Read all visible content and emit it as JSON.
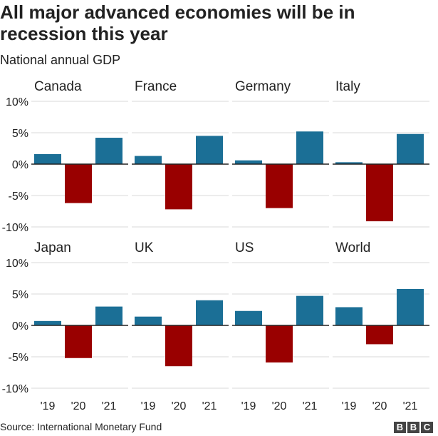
{
  "header": {
    "title": "All major advanced economies will be in recession this year",
    "subtitle": "National annual GDP"
  },
  "footer": {
    "source": "Source: International Monetary Fund",
    "logo": [
      "B",
      "B",
      "C"
    ]
  },
  "colors": {
    "positive": "#1b6f96",
    "negative": "#990000",
    "grid": "#d9d9d9",
    "zero": "#222222"
  },
  "chart_data": {
    "type": "bar",
    "title": "All major advanced economies will be in recession this year",
    "subtitle": "National annual GDP",
    "categories": [
      "'19",
      "'20",
      "'21"
    ],
    "ylim": [
      -10,
      10
    ],
    "yticks": [
      10,
      5,
      0,
      -5,
      -10
    ],
    "ytick_labels": [
      "10%",
      "5%",
      "0%",
      "-5%",
      "-10%"
    ],
    "panels": [
      {
        "name": "Canada",
        "values": [
          1.6,
          -6.2,
          4.2
        ]
      },
      {
        "name": "France",
        "values": [
          1.3,
          -7.2,
          4.5
        ]
      },
      {
        "name": "Germany",
        "values": [
          0.6,
          -7.0,
          5.2
        ]
      },
      {
        "name": "Italy",
        "values": [
          0.3,
          -9.1,
          4.8
        ]
      },
      {
        "name": "Japan",
        "values": [
          0.7,
          -5.2,
          3.0
        ]
      },
      {
        "name": "UK",
        "values": [
          1.4,
          -6.5,
          4.0
        ]
      },
      {
        "name": "US",
        "values": [
          2.3,
          -5.9,
          4.7
        ]
      },
      {
        "name": "World",
        "values": [
          2.9,
          -3.0,
          5.8
        ]
      }
    ]
  }
}
